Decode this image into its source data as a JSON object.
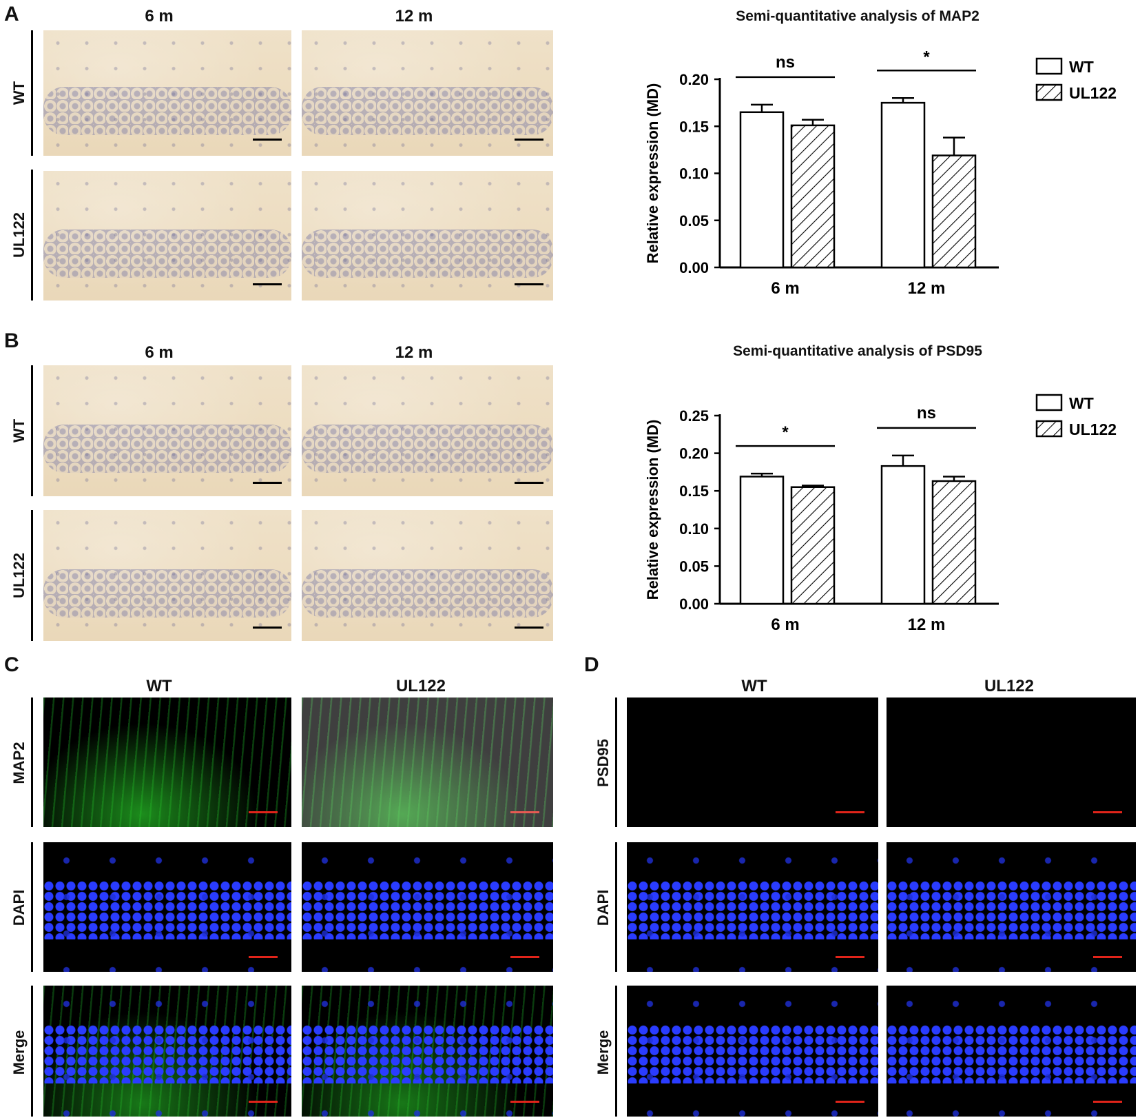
{
  "panels": {
    "A": {
      "letter": "A",
      "col_heads": [
        "6 m",
        "12 m"
      ],
      "row_labels": [
        "WT",
        "UL122"
      ]
    },
    "B": {
      "letter": "B",
      "col_heads": [
        "6 m",
        "12 m"
      ],
      "row_labels": [
        "WT",
        "UL122"
      ]
    },
    "C": {
      "letter": "C",
      "col_heads": [
        "WT",
        "UL122"
      ],
      "row_labels": [
        "MAP2",
        "DAPI",
        "Merge"
      ]
    },
    "D": {
      "letter": "D",
      "col_heads": [
        "WT",
        "UL122"
      ],
      "row_labels": [
        "PSD95",
        "DAPI",
        "Merge"
      ]
    }
  },
  "colors": {
    "ihc_bg": "#ecdcc0",
    "green": "#2ec02e",
    "blue": "#2a3cff",
    "scalebar_red": "#e0241a",
    "scalebar_black": "#000000"
  },
  "chart_data": [
    {
      "type": "bar",
      "title": "Semi-quantitative analysis of MAP2",
      "ylabel": "Relative expression (MD)",
      "categories": [
        "6 m",
        "12 m"
      ],
      "series": [
        {
          "name": "WT",
          "values": [
            0.165,
            0.175
          ],
          "errors": [
            0.008,
            0.005
          ],
          "fill": "open"
        },
        {
          "name": "UL122",
          "values": [
            0.151,
            0.119
          ],
          "errors": [
            0.006,
            0.019
          ],
          "fill": "hatched"
        }
      ],
      "significance": [
        "ns",
        "*"
      ],
      "ylim": [
        0,
        0.2
      ],
      "yticks": [
        "0.00",
        "0.05",
        "0.10",
        "0.15",
        "0.20"
      ],
      "legend": "top-right"
    },
    {
      "type": "bar",
      "title": "Semi-quantitative analysis of PSD95",
      "ylabel": "Relative expression (MD)",
      "categories": [
        "6 m",
        "12 m"
      ],
      "series": [
        {
          "name": "WT",
          "values": [
            0.169,
            0.183
          ],
          "errors": [
            0.004,
            0.014
          ],
          "fill": "open"
        },
        {
          "name": "UL122",
          "values": [
            0.155,
            0.163
          ],
          "errors": [
            0.002,
            0.006
          ],
          "fill": "hatched"
        }
      ],
      "significance": [
        "*",
        "ns"
      ],
      "ylim": [
        0,
        0.25
      ],
      "yticks": [
        "0.00",
        "0.05",
        "0.10",
        "0.15",
        "0.20",
        "0.25"
      ],
      "legend": "top-right"
    }
  ]
}
